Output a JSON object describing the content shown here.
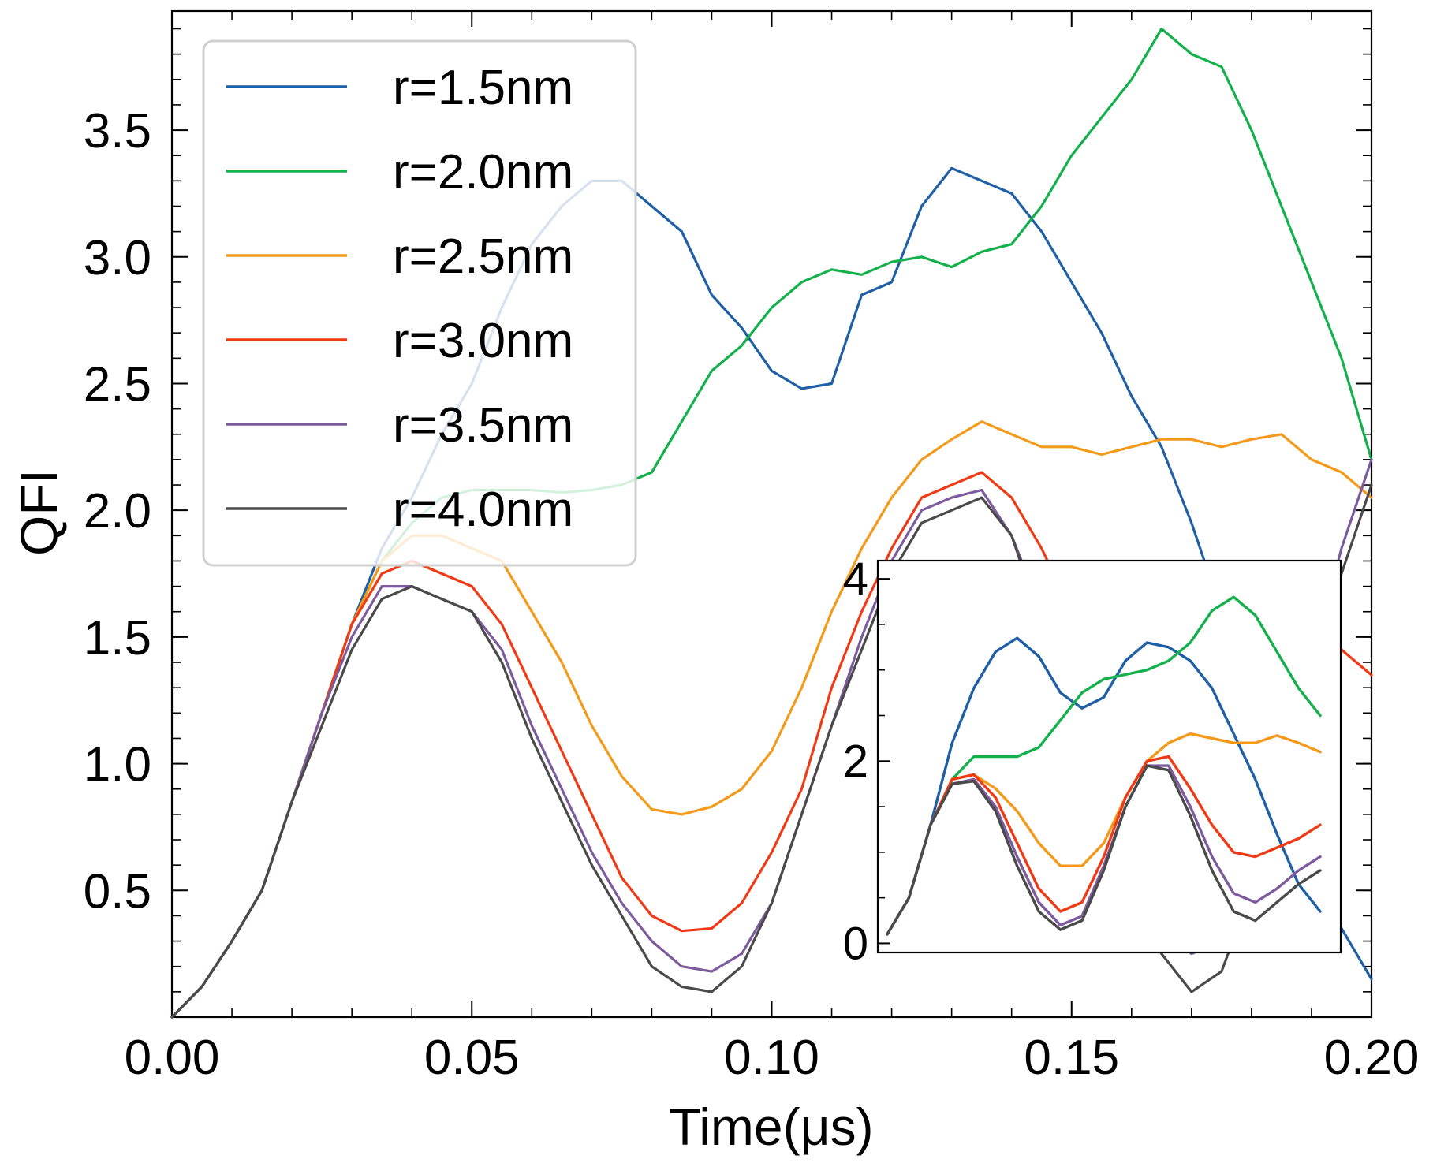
{
  "chart_data": {
    "type": "line",
    "xlabel": "Time(μs)",
    "ylabel": "QFI",
    "xlim": [
      0,
      0.2
    ],
    "ylim": [
      0,
      3.97
    ],
    "xticks": [
      0.0,
      0.05,
      0.1,
      0.15,
      0.2
    ],
    "xtick_labels": [
      "0.00",
      "0.05",
      "0.10",
      "0.15",
      "0.20"
    ],
    "yticks": [
      0.5,
      1.0,
      1.5,
      2.0,
      2.5,
      3.0,
      3.5
    ],
    "ytick_labels": [
      "0.5",
      "1.0",
      "1.5",
      "2.0",
      "2.5",
      "3.0",
      "3.5"
    ],
    "legend_position": "top-left",
    "series": [
      {
        "name": "r=1.5nm",
        "color": "#1f5fa6",
        "x": [
          0,
          0.005,
          0.01,
          0.015,
          0.02,
          0.025,
          0.03,
          0.035,
          0.04,
          0.045,
          0.05,
          0.055,
          0.06,
          0.065,
          0.07,
          0.075,
          0.08,
          0.085,
          0.09,
          0.095,
          0.1,
          0.105,
          0.11,
          0.115,
          0.12,
          0.125,
          0.13,
          0.135,
          0.14,
          0.145,
          0.15,
          0.155,
          0.16,
          0.165,
          0.17,
          0.175,
          0.18,
          0.185,
          0.19,
          0.195,
          0.2
        ],
        "y": [
          0,
          0.12,
          0.3,
          0.5,
          0.85,
          1.2,
          1.55,
          1.85,
          2.05,
          2.3,
          2.5,
          2.8,
          3.05,
          3.2,
          3.3,
          3.3,
          3.2,
          3.1,
          2.85,
          2.72,
          2.55,
          2.48,
          2.5,
          2.85,
          2.9,
          3.2,
          3.35,
          3.3,
          3.25,
          3.1,
          2.9,
          2.7,
          2.45,
          2.25,
          1.95,
          1.6,
          1.25,
          0.95,
          0.65,
          0.35,
          0.15
        ]
      },
      {
        "name": "r=2.0nm",
        "color": "#13b04b",
        "x": [
          0,
          0.005,
          0.01,
          0.015,
          0.02,
          0.025,
          0.03,
          0.035,
          0.04,
          0.045,
          0.05,
          0.055,
          0.06,
          0.065,
          0.07,
          0.075,
          0.08,
          0.085,
          0.09,
          0.095,
          0.1,
          0.105,
          0.11,
          0.115,
          0.12,
          0.125,
          0.13,
          0.135,
          0.14,
          0.145,
          0.15,
          0.155,
          0.16,
          0.165,
          0.17,
          0.175,
          0.18,
          0.185,
          0.19,
          0.195,
          0.2
        ],
        "y": [
          0,
          0.12,
          0.3,
          0.5,
          0.85,
          1.2,
          1.55,
          1.8,
          1.95,
          2.05,
          2.08,
          2.08,
          2.08,
          2.07,
          2.08,
          2.1,
          2.15,
          2.35,
          2.55,
          2.65,
          2.8,
          2.9,
          2.95,
          2.93,
          2.98,
          3.0,
          2.96,
          3.02,
          3.05,
          3.2,
          3.4,
          3.55,
          3.7,
          3.9,
          3.8,
          3.75,
          3.5,
          3.2,
          2.9,
          2.6,
          2.2
        ]
      },
      {
        "name": "r=2.5nm",
        "color": "#f39a1a",
        "x": [
          0,
          0.005,
          0.01,
          0.015,
          0.02,
          0.025,
          0.03,
          0.035,
          0.04,
          0.045,
          0.05,
          0.055,
          0.06,
          0.065,
          0.07,
          0.075,
          0.08,
          0.085,
          0.09,
          0.095,
          0.1,
          0.105,
          0.11,
          0.115,
          0.12,
          0.125,
          0.13,
          0.135,
          0.14,
          0.145,
          0.15,
          0.155,
          0.16,
          0.165,
          0.17,
          0.175,
          0.18,
          0.185,
          0.19,
          0.195,
          0.2
        ],
        "y": [
          0,
          0.12,
          0.3,
          0.5,
          0.85,
          1.2,
          1.55,
          1.8,
          1.9,
          1.9,
          1.85,
          1.8,
          1.6,
          1.4,
          1.15,
          0.95,
          0.82,
          0.8,
          0.83,
          0.9,
          1.05,
          1.3,
          1.6,
          1.85,
          2.05,
          2.2,
          2.28,
          2.35,
          2.3,
          2.25,
          2.25,
          2.22,
          2.25,
          2.28,
          2.28,
          2.25,
          2.28,
          2.3,
          2.2,
          2.15,
          2.05
        ]
      },
      {
        "name": "r=3.0nm",
        "color": "#ef3a15",
        "x": [
          0,
          0.005,
          0.01,
          0.015,
          0.02,
          0.025,
          0.03,
          0.035,
          0.04,
          0.045,
          0.05,
          0.055,
          0.06,
          0.065,
          0.07,
          0.075,
          0.08,
          0.085,
          0.09,
          0.095,
          0.1,
          0.105,
          0.11,
          0.115,
          0.12,
          0.125,
          0.13,
          0.135,
          0.14,
          0.145,
          0.15,
          0.155,
          0.16,
          0.165,
          0.17,
          0.175,
          0.18,
          0.185,
          0.19,
          0.195,
          0.2
        ],
        "y": [
          0,
          0.12,
          0.3,
          0.5,
          0.85,
          1.2,
          1.55,
          1.75,
          1.8,
          1.75,
          1.7,
          1.55,
          1.3,
          1.05,
          0.8,
          0.55,
          0.4,
          0.34,
          0.35,
          0.45,
          0.65,
          0.9,
          1.3,
          1.6,
          1.85,
          2.05,
          2.1,
          2.15,
          2.05,
          1.85,
          1.6,
          1.3,
          1.0,
          0.75,
          0.65,
          0.7,
          0.95,
          1.2,
          1.35,
          1.45,
          1.35
        ]
      },
      {
        "name": "r=3.5nm",
        "color": "#7d5b9e",
        "x": [
          0,
          0.005,
          0.01,
          0.015,
          0.02,
          0.025,
          0.03,
          0.035,
          0.04,
          0.045,
          0.05,
          0.055,
          0.06,
          0.065,
          0.07,
          0.075,
          0.08,
          0.085,
          0.09,
          0.095,
          0.1,
          0.105,
          0.11,
          0.115,
          0.12,
          0.125,
          0.13,
          0.135,
          0.14,
          0.145,
          0.15,
          0.155,
          0.16,
          0.165,
          0.17,
          0.175,
          0.18,
          0.185,
          0.19,
          0.195,
          0.2
        ],
        "y": [
          0,
          0.12,
          0.3,
          0.5,
          0.85,
          1.2,
          1.5,
          1.7,
          1.7,
          1.65,
          1.6,
          1.45,
          1.15,
          0.9,
          0.65,
          0.45,
          0.3,
          0.2,
          0.18,
          0.25,
          0.45,
          0.8,
          1.15,
          1.5,
          1.8,
          2.0,
          2.05,
          2.08,
          1.9,
          1.6,
          1.25,
          0.9,
          0.6,
          0.35,
          0.25,
          0.3,
          0.6,
          1.0,
          1.4,
          1.85,
          2.2
        ]
      },
      {
        "name": "r=4.0nm",
        "color": "#4a4a4a",
        "x": [
          0,
          0.005,
          0.01,
          0.015,
          0.02,
          0.025,
          0.03,
          0.035,
          0.04,
          0.045,
          0.05,
          0.055,
          0.06,
          0.065,
          0.07,
          0.075,
          0.08,
          0.085,
          0.09,
          0.095,
          0.1,
          0.105,
          0.11,
          0.115,
          0.12,
          0.125,
          0.13,
          0.135,
          0.14,
          0.145,
          0.15,
          0.155,
          0.16,
          0.165,
          0.17,
          0.175,
          0.18,
          0.185,
          0.19,
          0.195,
          0.2
        ],
        "y": [
          0,
          0.12,
          0.3,
          0.5,
          0.85,
          1.15,
          1.45,
          1.65,
          1.7,
          1.65,
          1.6,
          1.4,
          1.1,
          0.85,
          0.6,
          0.4,
          0.2,
          0.12,
          0.1,
          0.2,
          0.45,
          0.8,
          1.15,
          1.45,
          1.75,
          1.95,
          2.0,
          2.05,
          1.9,
          1.55,
          1.2,
          0.85,
          0.5,
          0.25,
          0.1,
          0.18,
          0.5,
          0.9,
          1.3,
          1.75,
          2.1
        ]
      }
    ],
    "inset": {
      "type": "line",
      "xlim": [
        0,
        1
      ],
      "ylim": [
        -0.1,
        4.2
      ],
      "yticks": [
        0,
        2,
        4
      ],
      "ytick_labels": [
        "0",
        "2",
        "4"
      ],
      "series": [
        {
          "name": "r=1.5nm",
          "color": "#1f5fa6",
          "x": [
            0,
            0.05,
            0.1,
            0.15,
            0.2,
            0.25,
            0.3,
            0.35,
            0.4,
            0.45,
            0.5,
            0.55,
            0.6,
            0.65,
            0.7,
            0.75,
            0.8,
            0.85,
            0.9,
            0.95,
            1.0
          ],
          "y": [
            0.1,
            0.5,
            1.3,
            2.2,
            2.8,
            3.2,
            3.35,
            3.15,
            2.75,
            2.58,
            2.7,
            3.1,
            3.3,
            3.25,
            3.1,
            2.8,
            2.3,
            1.8,
            1.2,
            0.65,
            0.35
          ]
        },
        {
          "name": "r=2.0nm",
          "color": "#13b04b",
          "x": [
            0,
            0.05,
            0.1,
            0.15,
            0.2,
            0.25,
            0.3,
            0.35,
            0.4,
            0.45,
            0.5,
            0.55,
            0.6,
            0.65,
            0.7,
            0.75,
            0.8,
            0.85,
            0.9,
            0.95,
            1.0
          ],
          "y": [
            0.1,
            0.5,
            1.3,
            1.8,
            2.05,
            2.05,
            2.05,
            2.15,
            2.45,
            2.75,
            2.9,
            2.95,
            3.0,
            3.1,
            3.3,
            3.65,
            3.8,
            3.6,
            3.2,
            2.8,
            2.5
          ]
        },
        {
          "name": "r=2.5nm",
          "color": "#f39a1a",
          "x": [
            0,
            0.05,
            0.1,
            0.15,
            0.2,
            0.25,
            0.3,
            0.35,
            0.4,
            0.45,
            0.5,
            0.55,
            0.6,
            0.65,
            0.7,
            0.75,
            0.8,
            0.85,
            0.9,
            0.95,
            1.0
          ],
          "y": [
            0.1,
            0.5,
            1.3,
            1.8,
            1.85,
            1.7,
            1.45,
            1.1,
            0.85,
            0.85,
            1.1,
            1.6,
            2.0,
            2.2,
            2.3,
            2.25,
            2.2,
            2.2,
            2.28,
            2.2,
            2.1
          ]
        },
        {
          "name": "r=3.0nm",
          "color": "#ef3a15",
          "x": [
            0,
            0.05,
            0.1,
            0.15,
            0.2,
            0.25,
            0.3,
            0.35,
            0.4,
            0.45,
            0.5,
            0.55,
            0.6,
            0.65,
            0.7,
            0.75,
            0.8,
            0.85,
            0.9,
            0.95,
            1.0
          ],
          "y": [
            0.1,
            0.5,
            1.3,
            1.8,
            1.85,
            1.6,
            1.1,
            0.6,
            0.35,
            0.45,
            0.95,
            1.6,
            2.0,
            2.05,
            1.7,
            1.3,
            1.0,
            0.95,
            1.05,
            1.15,
            1.3
          ]
        },
        {
          "name": "r=3.5nm",
          "color": "#7d5b9e",
          "x": [
            0,
            0.05,
            0.1,
            0.15,
            0.2,
            0.25,
            0.3,
            0.35,
            0.4,
            0.45,
            0.5,
            0.55,
            0.6,
            0.65,
            0.7,
            0.75,
            0.8,
            0.85,
            0.9,
            0.95,
            1.0
          ],
          "y": [
            0.1,
            0.5,
            1.3,
            1.75,
            1.8,
            1.5,
            0.95,
            0.45,
            0.2,
            0.3,
            0.85,
            1.5,
            1.95,
            1.95,
            1.5,
            0.95,
            0.55,
            0.45,
            0.6,
            0.8,
            0.95
          ]
        },
        {
          "name": "r=4.0nm",
          "color": "#4a4a4a",
          "x": [
            0,
            0.05,
            0.1,
            0.15,
            0.2,
            0.25,
            0.3,
            0.35,
            0.4,
            0.45,
            0.5,
            0.55,
            0.6,
            0.65,
            0.7,
            0.75,
            0.8,
            0.85,
            0.9,
            0.95,
            1.0
          ],
          "y": [
            0.1,
            0.5,
            1.3,
            1.75,
            1.78,
            1.45,
            0.85,
            0.35,
            0.15,
            0.25,
            0.8,
            1.5,
            1.95,
            1.9,
            1.4,
            0.8,
            0.35,
            0.25,
            0.45,
            0.65,
            0.8
          ]
        }
      ]
    }
  }
}
